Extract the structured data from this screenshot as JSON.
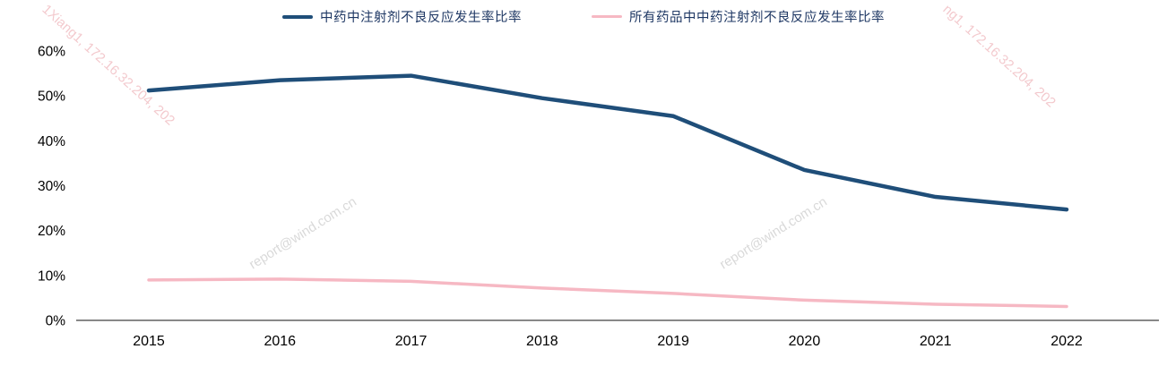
{
  "chart_data": {
    "type": "line",
    "title": "",
    "xlabel": "",
    "ylabel": "",
    "categories": [
      "2015",
      "2016",
      "2017",
      "2018",
      "2019",
      "2020",
      "2021",
      "2022"
    ],
    "series": [
      {
        "name": "中药中注射剂不良反应发生率比率",
        "color": "#1f4e79",
        "stroke_width": 4.5,
        "values": [
          51.2,
          53.5,
          54.5,
          49.5,
          45.5,
          33.5,
          27.5,
          24.7
        ]
      },
      {
        "name": "所有药品中中药注射剂不良反应发生率比率",
        "color": "#f6b8c3",
        "stroke_width": 3.5,
        "values": [
          9.0,
          9.2,
          8.7,
          7.2,
          6.0,
          4.5,
          3.6,
          3.1
        ]
      }
    ],
    "ylim": [
      0,
      60
    ],
    "ytick_step": 10,
    "ytick_suffix": "%",
    "yticks": [
      "0%",
      "10%",
      "20%",
      "30%",
      "40%",
      "50%",
      "60%"
    ],
    "legend_position": "top",
    "grid": false,
    "axis_color": "#404040"
  },
  "watermarks": {
    "wind": "report@wind.com.cn",
    "session_left": "1Xiang1, 172.16.32.204, 202",
    "session_right": "ng1, 172.16.32.204, 202"
  }
}
